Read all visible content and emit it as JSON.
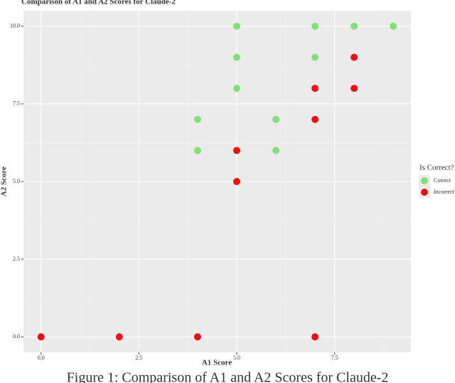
{
  "chart_data": {
    "type": "scatter",
    "title": "Comparison of A1 and A2 Scores for Claude-2",
    "x_label": "A1 Score",
    "y_label": "A2 Score",
    "legend_title": "Is Correct?",
    "series": [
      {
        "name": "Correct",
        "color": "#82e07a",
        "x": [
          5,
          7,
          8,
          9,
          5,
          7,
          5,
          4,
          6,
          4,
          6
        ],
        "y": [
          10,
          10,
          10,
          10,
          9,
          9,
          8,
          7,
          7,
          6,
          6
        ]
      },
      {
        "name": "Incorrect",
        "color": "#ee1111",
        "x": [
          8,
          7,
          8,
          7,
          5,
          5,
          0,
          2,
          4,
          7
        ],
        "y": [
          9,
          8,
          8,
          7,
          6,
          5,
          0,
          0,
          0,
          0
        ]
      }
    ],
    "xlim": [
      -0.45,
      9.45
    ],
    "ylim": [
      -0.5,
      10.5
    ],
    "xticks": [
      {
        "value": 0,
        "label": "0.0"
      },
      2.5,
      {
        "value": 5,
        "label": "5.0"
      },
      7.5
    ],
    "yticks": [
      {
        "value": 0,
        "label": "0.0"
      },
      2.5,
      {
        "value": 5,
        "label": "5.0"
      },
      7.5,
      {
        "value": 10,
        "label": "10.0"
      }
    ],
    "grid": true,
    "legend_position": "right",
    "caption": "Figure 1: Comparison of A1 and A2 Scores for Claude-2"
  }
}
